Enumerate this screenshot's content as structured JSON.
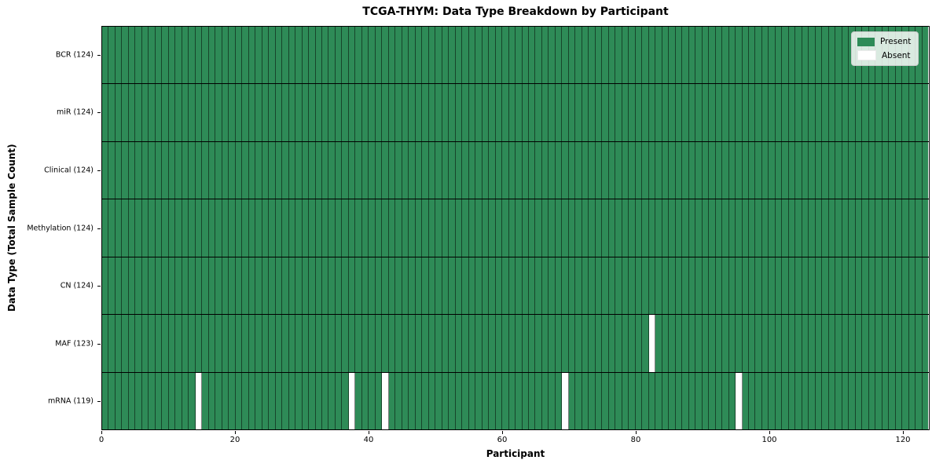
{
  "chart_data": {
    "type": "heatmap",
    "title": "TCGA-THYM: Data Type Breakdown by Participant",
    "xlabel": "Participant",
    "ylabel": "Data Type (Total Sample Count)",
    "xlim": [
      0,
      124
    ],
    "x_ticks": [
      0,
      20,
      40,
      60,
      80,
      100,
      120
    ],
    "n_participants": 124,
    "grid": "cell-borders",
    "rows": [
      {
        "label": "BCR (124)",
        "data_type": "BCR",
        "present_count": 124,
        "absent_participants": []
      },
      {
        "label": "miR (124)",
        "data_type": "miR",
        "present_count": 124,
        "absent_participants": []
      },
      {
        "label": "Clinical (124)",
        "data_type": "Clinical",
        "present_count": 124,
        "absent_participants": []
      },
      {
        "label": "Methylation (124)",
        "data_type": "Methylation",
        "present_count": 124,
        "absent_participants": []
      },
      {
        "label": "CN (124)",
        "data_type": "CN",
        "present_count": 124,
        "absent_participants": []
      },
      {
        "label": "MAF (123)",
        "data_type": "MAF",
        "present_count": 123,
        "absent_participants": [
          82
        ]
      },
      {
        "label": "mRNA (119)",
        "data_type": "mRNA",
        "present_count": 119,
        "absent_participants": [
          14,
          37,
          42,
          69,
          95
        ]
      }
    ],
    "legend": {
      "position": "upper-right",
      "entries": [
        {
          "label": "Present",
          "color": "#2e8b57"
        },
        {
          "label": "Absent",
          "color": "#ffffff"
        }
      ]
    },
    "colors": {
      "present": "#2e8b57",
      "absent": "#ffffff",
      "cell_edge": "rgba(0,0,0,0.5)",
      "row_divider": "#000000"
    }
  }
}
